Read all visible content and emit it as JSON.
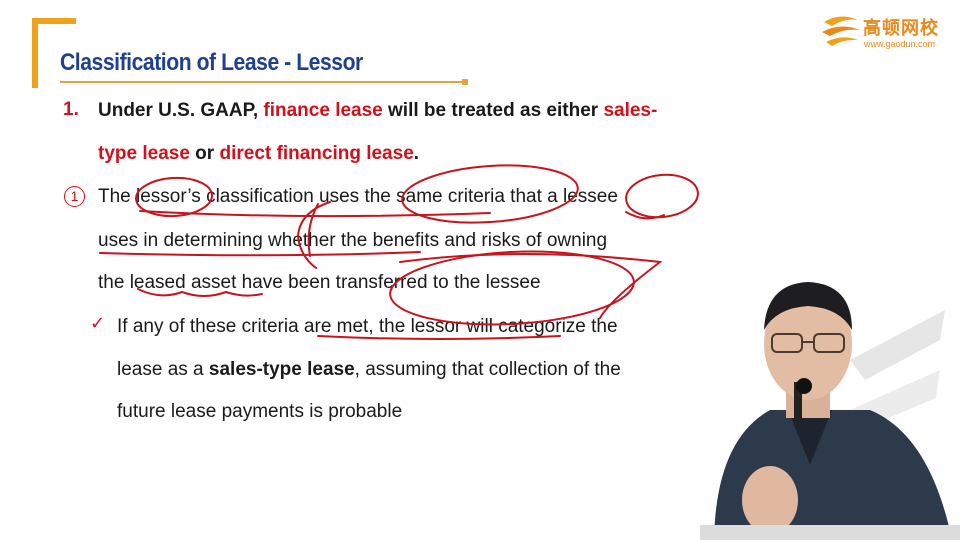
{
  "logo": {
    "name": "高顿网校",
    "url": "www.gaodun.com"
  },
  "slide": {
    "title": "Classification of Lease - Lessor",
    "point1": {
      "number": "1.",
      "l1_a": "Under U.S. GAAP, ",
      "l1_b": "finance lease",
      "l1_c": " will be treated as either ",
      "l1_d": "sales-",
      "l2_a": "type lease",
      "l2_b": " or ",
      "l2_c": "direct financing lease",
      "l2_d": "."
    },
    "sub1": {
      "marker": "1",
      "line1": "The lessor’s classification uses the same criteria that a lessee",
      "line2": "uses in determining whether the benefits and risks of owning",
      "line3": "the leased asset have been transferred to the lessee"
    },
    "check_item": {
      "marker": "✓",
      "line1": "If any of these criteria are met, the lessor will categorize the",
      "line2_a": "lease as a ",
      "line2_b": "sales-type lease",
      "line2_c": ", assuming that collection of the",
      "line3": "future lease payments is probable"
    }
  },
  "colors": {
    "accent": "#f0a21c",
    "title": "#1f3f8f",
    "highlight": "#d0111b"
  }
}
